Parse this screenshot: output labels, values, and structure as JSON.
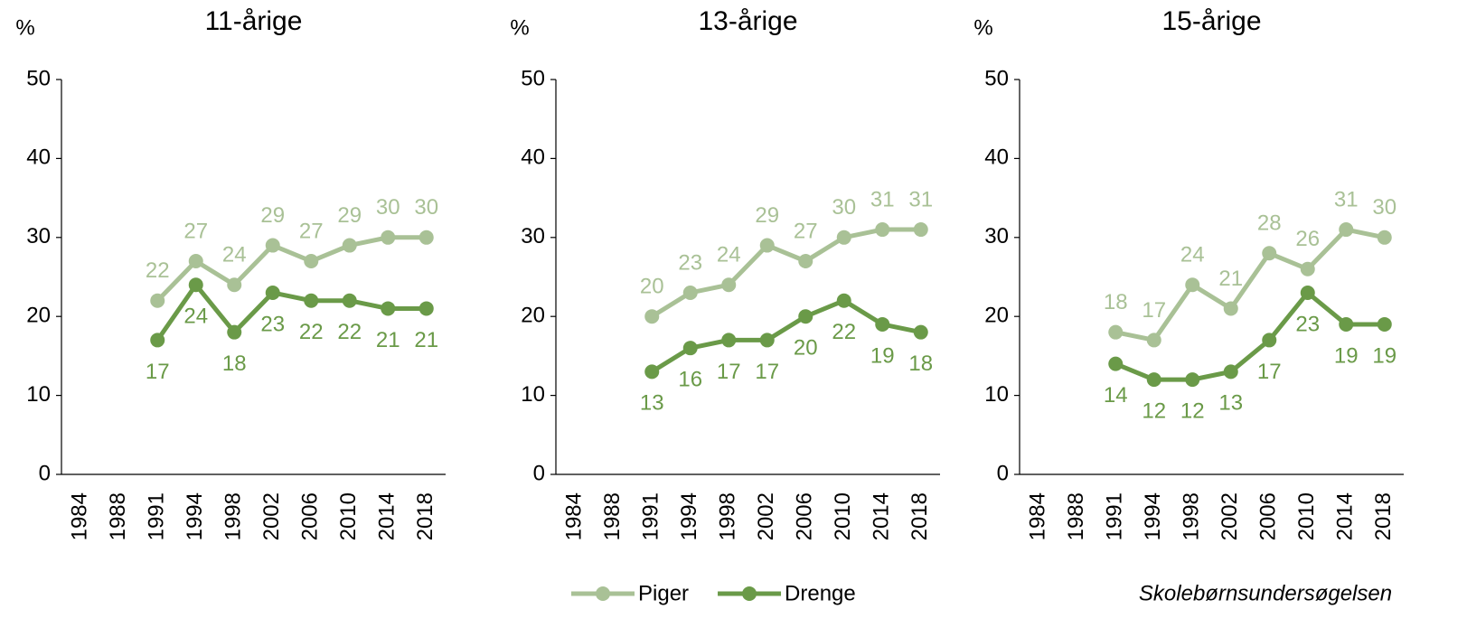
{
  "chart_data": [
    {
      "type": "line",
      "title": "11-årige",
      "y_label": "%",
      "categories": [
        "1984",
        "1988",
        "1991",
        "1994",
        "1998",
        "2002",
        "2006",
        "2010",
        "2014",
        "2018"
      ],
      "series": [
        {
          "name": "Piger",
          "color": "#a9c196",
          "values": [
            null,
            null,
            22,
            27,
            24,
            29,
            27,
            29,
            30,
            30
          ]
        },
        {
          "name": "Drenge",
          "color": "#6a9a48",
          "values": [
            null,
            null,
            17,
            24,
            18,
            23,
            22,
            22,
            21,
            21
          ]
        }
      ],
      "ylim": [
        0,
        50
      ],
      "yticks": [
        0,
        10,
        20,
        30,
        40,
        50
      ]
    },
    {
      "type": "line",
      "title": "13-årige",
      "y_label": "%",
      "categories": [
        "1984",
        "1988",
        "1991",
        "1994",
        "1998",
        "2002",
        "2006",
        "2010",
        "2014",
        "2018"
      ],
      "series": [
        {
          "name": "Piger",
          "color": "#a9c196",
          "values": [
            null,
            null,
            20,
            23,
            24,
            29,
            27,
            30,
            31,
            31
          ]
        },
        {
          "name": "Drenge",
          "color": "#6a9a48",
          "values": [
            null,
            null,
            13,
            16,
            17,
            17,
            20,
            22,
            19,
            18
          ]
        }
      ],
      "ylim": [
        0,
        50
      ],
      "yticks": [
        0,
        10,
        20,
        30,
        40,
        50
      ]
    },
    {
      "type": "line",
      "title": "15-årige",
      "y_label": "%",
      "categories": [
        "1984",
        "1988",
        "1991",
        "1994",
        "1998",
        "2002",
        "2006",
        "2010",
        "2014",
        "2018"
      ],
      "series": [
        {
          "name": "Piger",
          "color": "#a9c196",
          "values": [
            null,
            null,
            18,
            17,
            24,
            21,
            28,
            26,
            31,
            30
          ]
        },
        {
          "name": "Drenge",
          "color": "#6a9a48",
          "values": [
            null,
            null,
            14,
            12,
            12,
            13,
            17,
            23,
            19,
            19
          ]
        }
      ],
      "ylim": [
        0,
        50
      ],
      "yticks": [
        0,
        10,
        20,
        30,
        40,
        50
      ]
    }
  ],
  "source": "Skolebørnsundersøgelsen"
}
